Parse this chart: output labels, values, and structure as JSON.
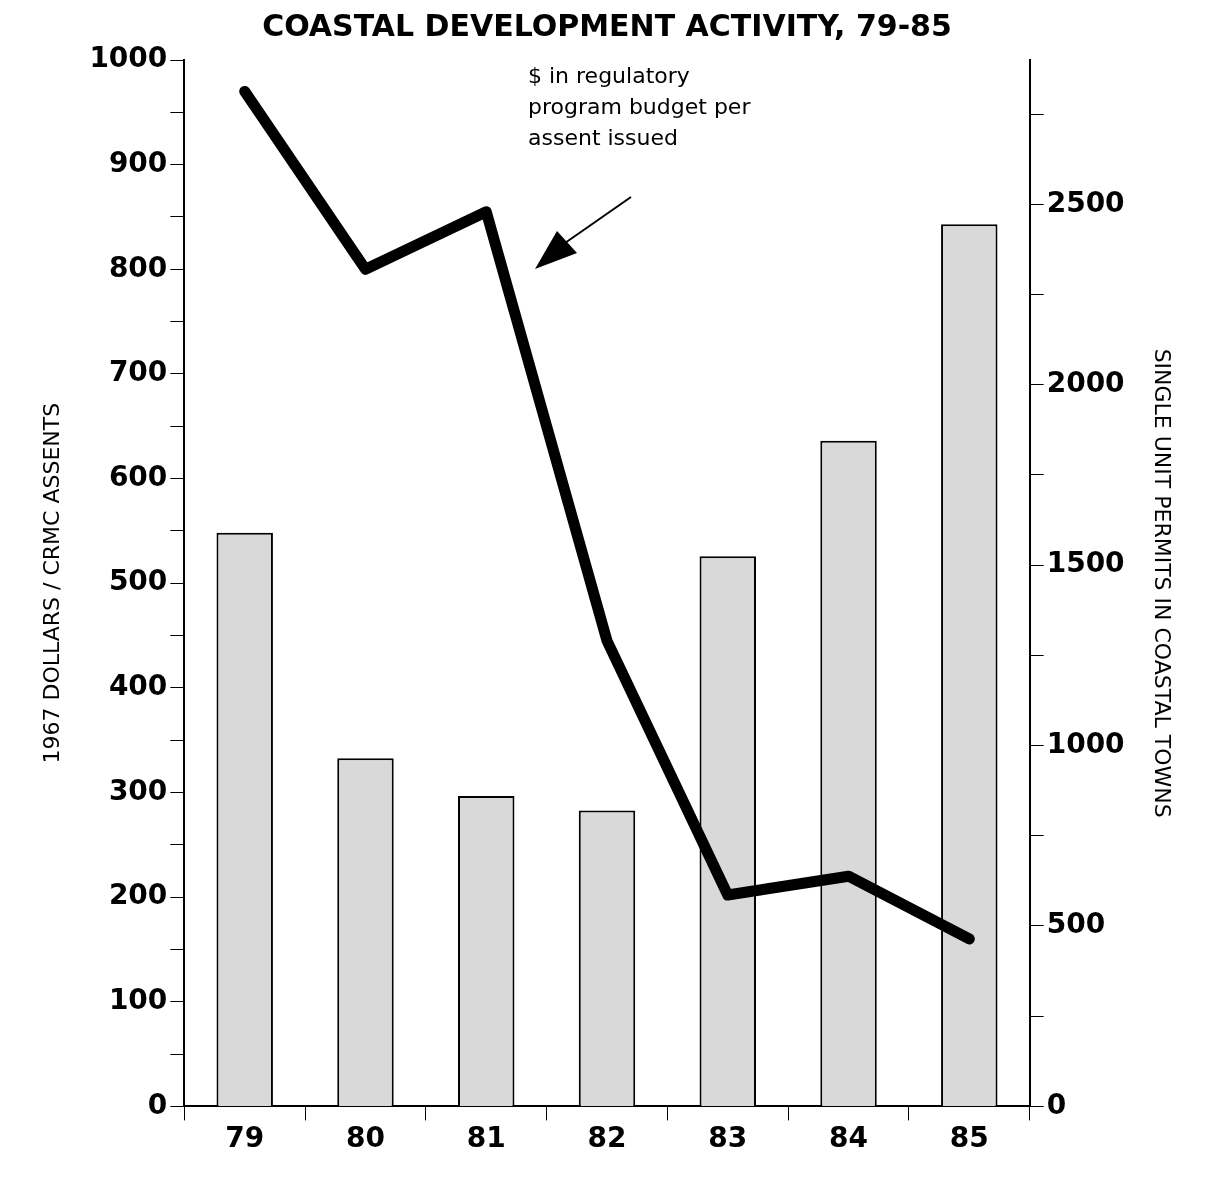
{
  "chart_data": {
    "type": "bar",
    "title": "COASTAL DEVELOPMENT ACTIVITY, 79-85",
    "ylabel": "1967 DOLLARS / CRMC ASSENTS",
    "y2label": "SINGLE UNIT PERMITS IN COASTAL TOWNS",
    "categories": [
      "79",
      "80",
      "81",
      "82",
      "83",
      "84",
      "85"
    ],
    "series": [
      {
        "type": "bar",
        "axis": "y2",
        "color": "#d9d9d9",
        "values": [
          1590,
          965,
          860,
          820,
          1525,
          1845,
          2445
        ]
      },
      {
        "type": "line",
        "axis": "y",
        "color": "#000000",
        "values": [
          970,
          800,
          855,
          445,
          202,
          220,
          160
        ]
      }
    ],
    "ylim": [
      0,
      1000
    ],
    "yticks": [
      0,
      {
        "value": 50,
        "label": null
      },
      100,
      {
        "value": 150,
        "label": null
      },
      200,
      {
        "value": 250,
        "label": null
      },
      300,
      {
        "value": 350,
        "label": null
      },
      400,
      {
        "value": 450,
        "label": null
      },
      500,
      {
        "value": 550,
        "label": null
      },
      600,
      {
        "value": 650,
        "label": null
      },
      700,
      {
        "value": 750,
        "label": null
      },
      800,
      {
        "value": 850,
        "label": null
      },
      900,
      {
        "value": 950,
        "label": null
      },
      1000
    ],
    "y2lim": [
      0,
      2900
    ],
    "y2ticks": [
      0,
      {
        "value": 250,
        "label": null
      },
      500,
      {
        "value": 750,
        "label": null
      },
      1000,
      {
        "value": 1250,
        "label": null
      },
      1500,
      {
        "value": 1750,
        "label": null
      },
      2000,
      {
        "value": 2250,
        "label": null
      },
      2500,
      {
        "value": 2750,
        "label": null
      }
    ],
    "annotations": [
      "$ in regulatory program budget per assent issued"
    ],
    "grid": false,
    "legend": false,
    "marker": "none",
    "line_style": "solid"
  }
}
